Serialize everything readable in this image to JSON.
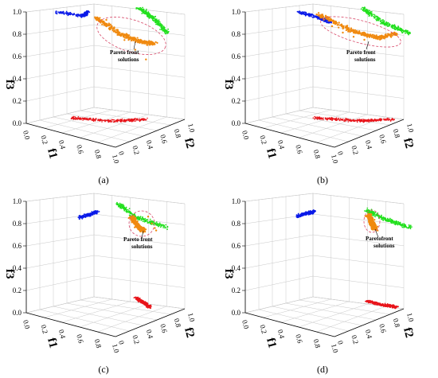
{
  "chart_data": [
    {
      "type": "scatter",
      "panel": "(a)",
      "zlabel": "f3",
      "xlabel": "f1",
      "ylabel": "f2",
      "annotation": [
        "Pareto front",
        "solutions"
      ],
      "zlim": [
        0,
        1
      ],
      "z_ticks": [
        "0.0",
        "0.2",
        "0.4",
        "0.6",
        "0.8",
        "1.0"
      ],
      "x_ticks": [
        "0.0",
        "0.2",
        "0.4",
        "0.6",
        "0.8",
        "1.0"
      ],
      "y_ticks": [
        "0",
        "0.2",
        "0.4",
        "0.6",
        "0.8",
        "1.0"
      ],
      "grid": true,
      "colors": {
        "pareto": "#f08a10",
        "f1f3_projection": "#0a1ae8",
        "f2f3_projection": "#22e01e",
        "f1f2_projection": "#e8141a",
        "ellipse": "#d84a6a"
      },
      "series": [
        {
          "name": "",
          "points": [
            [
              0.3,
              0.75,
              0.95
            ],
            [
              0.35,
              0.8,
              0.85
            ],
            [
              0.45,
              0.85,
              0.78
            ],
            [
              0.55,
              0.9,
              0.7
            ],
            [
              0.65,
              0.95,
              0.62
            ]
          ]
        }
      ]
    },
    {
      "type": "scatter",
      "panel": "(b)",
      "zlabel": "f3",
      "xlabel": "f1",
      "ylabel": "f2",
      "annotation": [
        "Pareto front",
        "solutions"
      ],
      "zlim": [
        0,
        1
      ],
      "z_ticks": [
        "0.0",
        "0.2",
        "0.4",
        "0.6",
        "0.8",
        "1.0"
      ],
      "x_ticks": [
        "0.0",
        "0.2",
        "0.4",
        "0.6",
        "0.8",
        "1.0"
      ],
      "y_ticks": [
        "0",
        "0.2",
        "0.4",
        "0.6",
        "0.8",
        "1.0"
      ],
      "grid": true,
      "colors": {
        "pareto": "#f08a10",
        "f1f3_projection": "#0a1ae8",
        "f2f3_projection": "#22e01e",
        "f1f2_projection": "#e8141a",
        "ellipse": "#d84a6a"
      },
      "series": [
        {
          "name": "",
          "points": [
            [
              0.3,
              0.7,
              0.97
            ],
            [
              0.4,
              0.75,
              0.9
            ],
            [
              0.5,
              0.8,
              0.85
            ],
            [
              0.6,
              0.85,
              0.82
            ],
            [
              0.7,
              0.9,
              0.8
            ]
          ]
        }
      ]
    },
    {
      "type": "scatter",
      "panel": "(c)",
      "zlabel": "f3",
      "xlabel": "f1",
      "ylabel": "f2",
      "annotation": [
        "Pareto front",
        "solutions"
      ],
      "zlim": [
        0,
        1
      ],
      "z_ticks": [
        "0.0",
        "0.2",
        "0.4",
        "0.6",
        "0.8",
        "1.0"
      ],
      "x_ticks": [
        "0.0",
        "0.2",
        "0.4",
        "0.6",
        "0.8",
        "1.0"
      ],
      "y_ticks": [
        "0",
        "0.2",
        "0.4",
        "0.6",
        "0.8",
        "1.0"
      ],
      "grid": true,
      "colors": {
        "pareto": "#f08a10",
        "f1f3_projection": "#0a1ae8",
        "f2f3_projection": "#22e01e",
        "f1f2_projection": "#e8141a",
        "ellipse": "#d84a6a"
      },
      "series": [
        {
          "name": "",
          "points": [
            [
              0.8,
              0.85,
              0.92
            ],
            [
              0.82,
              0.88,
              0.86
            ],
            [
              0.84,
              0.9,
              0.82
            ],
            [
              0.86,
              0.9,
              0.8
            ]
          ]
        }
      ]
    },
    {
      "type": "scatter",
      "panel": "(d)",
      "zlabel": "f3",
      "xlabel": "f1",
      "ylabel": "f2",
      "annotation": [
        "Paretofront",
        "solutions"
      ],
      "zlim": [
        0,
        1
      ],
      "z_ticks": [
        "0.0",
        "0.2",
        "0.4",
        "0.6",
        "0.8",
        "1.0"
      ],
      "x_ticks": [
        "0.0",
        "0.2",
        "0.4",
        "0.6",
        "0.8",
        "1.0"
      ],
      "y_ticks": [
        "0",
        "0.2",
        "0.4",
        "0.6",
        "0.8",
        "1.0"
      ],
      "grid": true,
      "colors": {
        "pareto": "#f08a10",
        "f1f3_projection": "#0a1ae8",
        "f2f3_projection": "#22e01e",
        "f1f2_projection": "#e8141a",
        "ellipse": "#d84a6a"
      },
      "series": [
        {
          "name": "",
          "points": [
            [
              0.82,
              0.86,
              0.94
            ],
            [
              0.84,
              0.88,
              0.88
            ],
            [
              0.85,
              0.9,
              0.84
            ],
            [
              0.86,
              0.9,
              0.82
            ]
          ]
        }
      ]
    }
  ]
}
